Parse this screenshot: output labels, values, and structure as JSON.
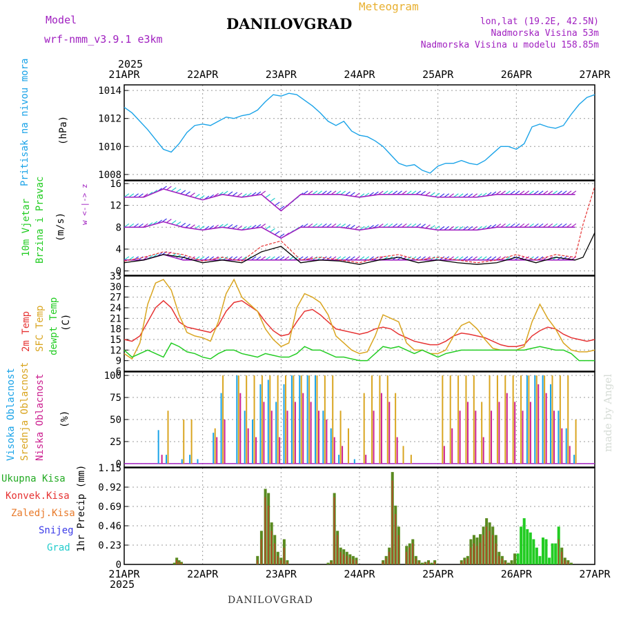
{
  "header": {
    "model_label": "Model",
    "model_name": "wrf-nmm_v3.9.1 e3km",
    "meteogram_label": "Meteogram",
    "location": "DANILOVGRAD",
    "lonlat": "lon,lat (19.2E, 42.5N)",
    "elevation": "Nadmorska Visina 53m",
    "model_elevation": "Nadmorska Visina u modelu 158.85m",
    "watermark": "made by Angel",
    "footer_location": "DANILOVGRAD"
  },
  "time_axis": {
    "year": "2025",
    "labels": [
      "21APR",
      "22APR",
      "23APR",
      "24APR",
      "25APR",
      "26APR",
      "27APR"
    ]
  },
  "colors": {
    "pressure": "#1aa3e8",
    "wind_green": "#22cc22",
    "purple": "#a020c0",
    "red": "#e63232",
    "orange": "#e89a2a",
    "gold": "#d9a520",
    "cyan": "#22cccc",
    "blue": "#3a3ae8",
    "mid_green": "#33aa33"
  },
  "panels": {
    "pressure": {
      "labels": [
        "Pritisak na nivou mora",
        "(hPa)"
      ],
      "yticks": [
        "1008",
        "1010",
        "1012",
        "1014"
      ]
    },
    "wind": {
      "labels": [
        "10m Vjetar",
        "Brzina i Pravac",
        "(m/s)"
      ],
      "legend": "w <-|-> z",
      "yticks": [
        "0",
        "4",
        "8",
        "12",
        "16"
      ]
    },
    "temp": {
      "labels": [
        "2m Temp",
        "SFC Temp",
        "dewpt Temp",
        "(C)"
      ],
      "yticks": [
        "6",
        "9",
        "12",
        "15",
        "18",
        "21",
        "24",
        "27",
        "30",
        "33"
      ]
    },
    "cloud": {
      "labels": [
        "Visoka Oblacnost",
        "Srednja Oblacnost",
        "Niska Oblacnost",
        "(%)"
      ],
      "yticks": [
        "0",
        "25",
        "50",
        "75",
        "100"
      ]
    },
    "precip": {
      "labels": [
        "Ukupna Kisa",
        "Konvek.Kisa",
        "Zaledj.Kisa",
        "Snijeg",
        "Grad",
        "1hr Precip (mm)"
      ],
      "yticks": [
        "0",
        "0.23",
        "0.46",
        "0.69",
        "0.92",
        "1.15"
      ]
    }
  },
  "chart_data": [
    {
      "type": "line",
      "title": "Pritisak na nivou mora",
      "ylabel": "hPa",
      "ylim": [
        1007.6,
        1014.4
      ],
      "x_days": [
        0,
        0.1,
        0.2,
        0.3,
        0.4,
        0.5,
        0.6,
        0.7,
        0.8,
        0.9,
        1.0,
        1.1,
        1.2,
        1.3,
        1.4,
        1.5,
        1.6,
        1.7,
        1.8,
        1.9,
        2.0,
        2.1,
        2.2,
        2.3,
        2.4,
        2.5,
        2.6,
        2.7,
        2.8,
        2.9,
        3.0,
        3.1,
        3.2,
        3.3,
        3.4,
        3.5,
        3.6,
        3.7,
        3.8,
        3.9,
        4.0,
        4.1,
        4.2,
        4.3,
        4.4,
        4.5,
        4.6,
        4.7,
        4.8,
        4.9,
        5.0,
        5.1,
        5.2,
        5.3,
        5.4,
        5.5,
        5.6,
        5.7,
        5.8,
        5.9,
        6.0
      ],
      "values": [
        1012.8,
        1012.4,
        1011.8,
        1011.2,
        1010.5,
        1009.8,
        1009.6,
        1010.2,
        1011.0,
        1011.5,
        1011.6,
        1011.5,
        1011.8,
        1012.1,
        1012.0,
        1012.2,
        1012.3,
        1012.6,
        1013.2,
        1013.7,
        1013.6,
        1013.8,
        1013.7,
        1013.3,
        1012.9,
        1012.4,
        1011.8,
        1011.5,
        1011.8,
        1011.1,
        1010.8,
        1010.7,
        1010.4,
        1010.0,
        1009.4,
        1008.8,
        1008.6,
        1008.7,
        1008.3,
        1008.1,
        1008.6,
        1008.8,
        1008.8,
        1009.0,
        1008.8,
        1008.7,
        1009.0,
        1009.5,
        1010.0,
        1010.0,
        1009.8,
        1010.2,
        1011.4,
        1011.6,
        1011.4,
        1011.3,
        1011.5,
        1012.3,
        1013.0,
        1013.5,
        1013.7
      ]
    },
    {
      "type": "line",
      "title": "10m Vjetar Brzina i Pravac",
      "ylabel": "m/s",
      "ylim": [
        -0.8,
        16.5
      ],
      "x_days": [
        0,
        0.25,
        0.5,
        0.75,
        1.0,
        1.25,
        1.5,
        1.75,
        2.0,
        2.25,
        2.5,
        2.75,
        3.0,
        3.25,
        3.5,
        3.75,
        4.0,
        4.25,
        4.5,
        4.75,
        5.0,
        5.25,
        5.5,
        5.75,
        5.85,
        6.0
      ],
      "series": [
        {
          "name": "speed",
          "values": [
            1.5,
            2.0,
            3.0,
            2.5,
            1.5,
            2.0,
            1.5,
            3.5,
            4.5,
            1.5,
            2.0,
            1.8,
            1.2,
            2.0,
            2.5,
            1.5,
            2.0,
            1.5,
            1.2,
            1.5,
            2.5,
            1.5,
            2.5,
            2.0,
            2.5,
            7.0
          ]
        },
        {
          "name": "gust",
          "values": [
            1.8,
            2.5,
            3.5,
            3.0,
            1.8,
            2.5,
            1.8,
            4.5,
            5.5,
            2.0,
            2.5,
            2.0,
            1.5,
            2.5,
            3.0,
            2.0,
            2.5,
            2.0,
            1.5,
            2.0,
            3.0,
            2.0,
            3.0,
            2.5,
            8.5,
            15.5
          ]
        },
        {
          "name": "band_low",
          "values": [
            2,
            2,
            3,
            2,
            2,
            2,
            2,
            2,
            2,
            2,
            2,
            2,
            2,
            2,
            2,
            2,
            2,
            2,
            2,
            2,
            2,
            2,
            2,
            2,
            2,
            2
          ]
        },
        {
          "name": "band_mid",
          "values": [
            8,
            8,
            9,
            8,
            7.5,
            8,
            7.5,
            8,
            6,
            8,
            8,
            8,
            7.5,
            8,
            8,
            8,
            7.5,
            7.5,
            7.5,
            8,
            8,
            8,
            8,
            8,
            8,
            8
          ]
        },
        {
          "name": "band_high",
          "values": [
            13.5,
            13.5,
            15,
            14,
            13,
            14,
            13.5,
            14,
            11,
            14,
            14,
            14,
            13.5,
            14,
            14,
            14,
            13.5,
            13.5,
            13.5,
            14,
            14,
            14,
            14,
            14,
            14,
            14
          ]
        }
      ]
    },
    {
      "type": "line",
      "title": "Temp",
      "ylabel": "C",
      "ylim": [
        6,
        33
      ],
      "x_days": [
        0,
        0.1,
        0.2,
        0.3,
        0.4,
        0.5,
        0.6,
        0.7,
        0.8,
        0.9,
        1.0,
        1.1,
        1.2,
        1.3,
        1.4,
        1.5,
        1.6,
        1.7,
        1.8,
        1.9,
        2.0,
        2.1,
        2.2,
        2.3,
        2.4,
        2.5,
        2.6,
        2.7,
        2.8,
        2.9,
        3.0,
        3.1,
        3.2,
        3.3,
        3.4,
        3.5,
        3.6,
        3.7,
        3.8,
        3.9,
        4.0,
        4.1,
        4.2,
        4.3,
        4.4,
        4.5,
        4.6,
        4.7,
        4.8,
        4.9,
        5.0,
        5.1,
        5.2,
        5.3,
        5.4,
        5.5,
        5.6,
        5.7,
        5.8,
        5.9,
        6.0
      ],
      "series": [
        {
          "name": "2m Temp",
          "values": [
            15,
            14.5,
            16,
            20,
            24,
            26,
            24,
            20,
            18.5,
            18,
            17.5,
            17,
            19,
            23,
            25.5,
            26,
            24.5,
            23,
            20,
            17.5,
            16,
            16.5,
            20,
            23,
            23.5,
            22,
            20,
            18,
            17.5,
            17,
            16.5,
            17,
            18,
            18.5,
            18,
            16.5,
            15.5,
            14.5,
            14,
            13.5,
            13.5,
            14.5,
            16,
            16.8,
            16.5,
            16,
            15.5,
            14.5,
            13.5,
            13,
            13,
            13.5,
            16,
            17.5,
            18.5,
            18,
            16.5,
            15.5,
            15,
            14.5,
            15
          ]
        },
        {
          "name": "SFC Temp",
          "values": [
            11,
            9.5,
            14,
            25,
            31,
            32,
            29,
            22,
            17,
            16,
            15.5,
            14.5,
            20,
            28,
            32,
            27,
            25,
            23,
            18,
            15,
            13,
            14,
            24,
            28,
            27,
            25.5,
            22,
            16,
            14,
            12,
            11,
            11.5,
            16,
            22,
            21,
            20,
            14,
            12,
            12,
            11,
            11,
            12,
            16,
            19,
            20,
            18,
            15,
            12.5,
            12,
            12,
            12,
            13,
            20,
            25,
            21,
            18,
            14,
            12,
            11.5,
            11.5,
            12
          ]
        },
        {
          "name": "dewpt Temp",
          "values": [
            12,
            10,
            11,
            12,
            11,
            10,
            14,
            13,
            11.5,
            11,
            10,
            9.5,
            11,
            12,
            12,
            11,
            10.5,
            10,
            11,
            10.5,
            10,
            10,
            11,
            13,
            12,
            12,
            11,
            10,
            10,
            9.5,
            9,
            9,
            11,
            13,
            12.5,
            13,
            12,
            11,
            12,
            11,
            10,
            11,
            11.5,
            12,
            12,
            12,
            12,
            12,
            12,
            12,
            12,
            12,
            12.5,
            13,
            12.5,
            12,
            12,
            11,
            9,
            9,
            9
          ]
        }
      ]
    },
    {
      "type": "bar",
      "title": "Oblacnost",
      "ylabel": "%",
      "ylim": [
        0,
        100
      ],
      "x_days": [
        0.45,
        0.55,
        0.75,
        0.85,
        0.95,
        1.15,
        1.25,
        1.45,
        1.55,
        1.65,
        1.75,
        1.85,
        1.95,
        2.05,
        2.15,
        2.25,
        2.35,
        2.45,
        2.55,
        2.65,
        2.75,
        2.85,
        2.95,
        3.05,
        3.15,
        3.25,
        3.35,
        3.45,
        3.55,
        3.65,
        3.75,
        3.85,
        3.95,
        4.05,
        4.15,
        4.25,
        4.35,
        4.45,
        4.55,
        4.65,
        4.75,
        4.85,
        4.95,
        5.05,
        5.15,
        5.25,
        5.35,
        5.45,
        5.55,
        5.65,
        5.75,
        5.85
      ],
      "series": [
        {
          "name": "Visoka Oblacnost",
          "values": [
            38,
            10,
            5,
            10,
            5,
            35,
            80,
            100,
            60,
            50,
            90,
            95,
            70,
            90,
            100,
            100,
            100,
            100,
            60,
            40,
            10,
            0,
            5,
            0,
            0,
            0,
            0,
            0,
            0,
            0,
            0,
            0,
            0,
            0,
            0,
            0,
            0,
            0,
            0,
            0,
            0,
            0,
            0,
            0,
            100,
            100,
            100,
            90,
            60,
            40,
            10,
            0
          ]
        },
        {
          "name": "Srednja Oblacnost",
          "values": [
            0,
            60,
            50,
            50,
            0,
            40,
            100,
            100,
            100,
            100,
            100,
            100,
            100,
            100,
            100,
            100,
            100,
            100,
            100,
            100,
            60,
            40,
            0,
            80,
            100,
            100,
            100,
            80,
            20,
            10,
            0,
            0,
            0,
            100,
            100,
            100,
            100,
            100,
            70,
            100,
            100,
            100,
            100,
            100,
            100,
            100,
            100,
            100,
            100,
            100,
            50,
            0
          ]
        },
        {
          "name": "Niska Oblacnost",
          "values": [
            10,
            0,
            0,
            0,
            0,
            30,
            50,
            80,
            40,
            30,
            70,
            60,
            30,
            60,
            70,
            80,
            70,
            60,
            50,
            30,
            20,
            0,
            0,
            10,
            60,
            80,
            70,
            30,
            0,
            0,
            0,
            0,
            0,
            20,
            40,
            60,
            70,
            60,
            30,
            60,
            70,
            80,
            70,
            60,
            70,
            90,
            80,
            60,
            40,
            20,
            0,
            0
          ]
        }
      ]
    },
    {
      "type": "bar",
      "title": "1hr Precip",
      "ylabel": "mm",
      "ylim": [
        0,
        1.15
      ],
      "x_days": [
        0.64,
        0.67,
        0.7,
        0.73,
        1.7,
        1.75,
        1.8,
        1.84,
        1.88,
        1.92,
        1.96,
        2.0,
        2.04,
        2.08,
        2.6,
        2.64,
        2.68,
        2.72,
        2.76,
        2.8,
        2.84,
        2.88,
        2.92,
        2.96,
        3.3,
        3.34,
        3.38,
        3.42,
        3.46,
        3.5,
        3.6,
        3.64,
        3.68,
        3.72,
        3.76,
        3.8,
        3.84,
        3.88,
        3.92,
        3.96,
        4.3,
        4.34,
        4.38,
        4.42,
        4.46,
        4.5,
        4.54,
        4.58,
        4.62,
        4.66,
        4.7,
        4.74,
        4.78,
        4.82,
        4.86,
        4.9,
        4.94,
        4.98,
        5.02,
        5.06,
        5.1,
        5.14,
        5.18,
        5.22,
        5.26,
        5.3,
        5.34,
        5.38,
        5.42,
        5.46,
        5.5,
        5.54,
        5.58,
        5.62,
        5.66,
        5.7
      ],
      "series": [
        {
          "name": "Ukupna Kisa",
          "values": [
            0.02,
            0.08,
            0.05,
            0.03,
            0.1,
            0.4,
            0.9,
            0.85,
            0.5,
            0.35,
            0.15,
            0.08,
            0.3,
            0.05,
            0.02,
            0.05,
            0.85,
            0.4,
            0.2,
            0.18,
            0.15,
            0.12,
            0.1,
            0.08,
            0.05,
            0.1,
            0.2,
            1.1,
            0.7,
            0.45,
            0.22,
            0.25,
            0.3,
            0.1,
            0.05,
            0.02,
            0.03,
            0.05,
            0.02,
            0.05,
            0.05,
            0.08,
            0.1,
            0.3,
            0.35,
            0.32,
            0.36,
            0.45,
            0.55,
            0.5,
            0.45,
            0.35,
            0.15,
            0.1,
            0.05,
            0.02,
            0.05,
            0.13,
            0.13,
            0.45,
            0.55,
            0.42,
            0.38,
            0.3,
            0.2,
            0.1,
            0.32,
            0.3,
            0.08,
            0.25,
            0.25,
            0.45,
            0.2,
            0.08,
            0.05,
            0.02
          ]
        },
        {
          "name": "Konvek.Kisa",
          "values": [
            0,
            0.05,
            0.03,
            0.02,
            0.05,
            0.3,
            0.8,
            0.7,
            0.4,
            0.25,
            0.1,
            0.05,
            0.2,
            0.03,
            0.01,
            0.03,
            0.8,
            0.35,
            0.15,
            0.12,
            0.1,
            0.08,
            0.06,
            0.05,
            0.03,
            0.07,
            0.15,
            1.0,
            0.6,
            0.35,
            0.15,
            0.2,
            0.25,
            0.07,
            0.03,
            0.01,
            0.02,
            0.03,
            0.01,
            0.03,
            0.03,
            0.05,
            0.07,
            0.2,
            0.25,
            0.22,
            0.26,
            0.35,
            0.45,
            0.4,
            0.35,
            0.25,
            0.1,
            0.07,
            0.03,
            0.01,
            0,
            0,
            0,
            0,
            0,
            0,
            0,
            0,
            0,
            0,
            0,
            0,
            0,
            0,
            0,
            0.3,
            0.15,
            0.05,
            0.03,
            0.01
          ]
        }
      ]
    }
  ]
}
